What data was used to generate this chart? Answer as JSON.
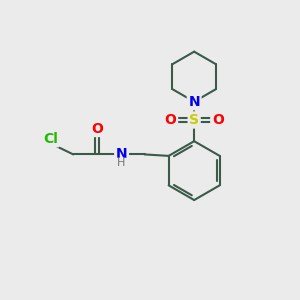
{
  "bg_color": "#ebebeb",
  "bond_color": "#3a5a4a",
  "bond_width": 1.5,
  "atom_colors": {
    "Cl": "#22bb00",
    "O": "#ff0000",
    "N": "#0000ee",
    "S": "#cccc00",
    "C": "#3a5a4a",
    "H": "#777777"
  },
  "font_size": 10,
  "small_font_size": 8,
  "figsize": [
    3.0,
    3.0
  ],
  "dpi": 100
}
